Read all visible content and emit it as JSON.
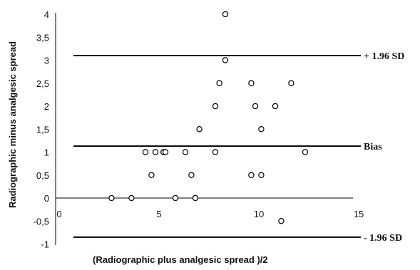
{
  "chart_data": {
    "type": "scatter",
    "xlabel": "(Radiographic plus analgesic spread )/2",
    "ylabel": "Radiographic minus analgesic spread",
    "xlim": [
      0,
      15
    ],
    "ylim": [
      -1,
      4
    ],
    "x_ticks": [
      0,
      5,
      10,
      15
    ],
    "x_tick_labels": [
      "0",
      "5",
      "10",
      "15"
    ],
    "y_ticks": [
      4,
      3.5,
      3,
      2.5,
      2,
      1.5,
      1,
      0.5,
      0,
      -0.5,
      -1
    ],
    "y_tick_labels": [
      "4",
      "3,5",
      "3",
      "2,5",
      "2",
      "1,5",
      "1",
      "0,5",
      "0",
      "-0,5",
      "-1"
    ],
    "grid": false,
    "reference_lines": [
      {
        "label": "+ 1.96 SD",
        "y": 3.1
      },
      {
        "label": "Bias",
        "y": 1.13
      },
      {
        "label": "- 1.96 SD",
        "y": -0.85
      }
    ],
    "points": [
      {
        "x": 8.5,
        "y": 4.0
      },
      {
        "x": 8.5,
        "y": 3.0
      },
      {
        "x": 8.2,
        "y": 2.5
      },
      {
        "x": 9.8,
        "y": 2.5
      },
      {
        "x": 11.8,
        "y": 2.5
      },
      {
        "x": 8.0,
        "y": 2.0
      },
      {
        "x": 10.0,
        "y": 2.0
      },
      {
        "x": 11.0,
        "y": 2.0
      },
      {
        "x": 7.2,
        "y": 1.5
      },
      {
        "x": 10.3,
        "y": 1.5
      },
      {
        "x": 4.5,
        "y": 1.0
      },
      {
        "x": 5.0,
        "y": 1.0
      },
      {
        "x": 5.4,
        "y": 1.0
      },
      {
        "x": 5.5,
        "y": 1.0
      },
      {
        "x": 6.5,
        "y": 1.0
      },
      {
        "x": 8.0,
        "y": 1.0
      },
      {
        "x": 12.5,
        "y": 1.0
      },
      {
        "x": 4.8,
        "y": 0.5
      },
      {
        "x": 6.8,
        "y": 0.5
      },
      {
        "x": 9.8,
        "y": 0.5
      },
      {
        "x": 10.3,
        "y": 0.5
      },
      {
        "x": 2.8,
        "y": 0.0
      },
      {
        "x": 3.8,
        "y": 0.0
      },
      {
        "x": 6.0,
        "y": 0.0
      },
      {
        "x": 7.0,
        "y": 0.0
      },
      {
        "x": 11.3,
        "y": -0.5
      }
    ],
    "marker": {
      "shape": "open-circle",
      "color": "#000000"
    },
    "line_color": "#000000"
  }
}
